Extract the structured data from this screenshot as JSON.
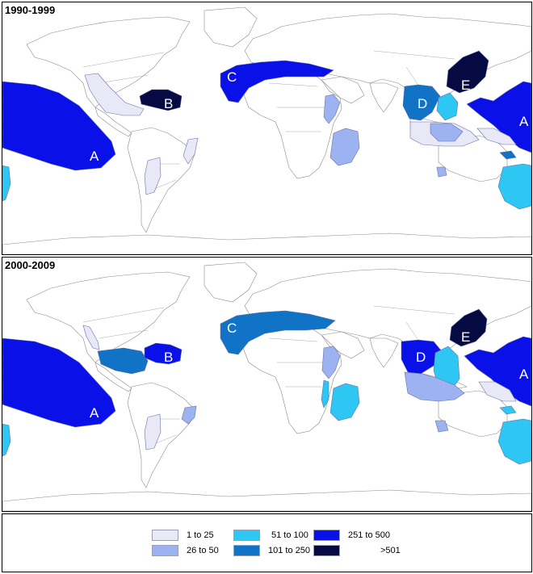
{
  "colors": {
    "c1": "#e8e8f6",
    "c2": "#9db2f0",
    "c3": "#2ec6f2",
    "c4": "#1173c6",
    "c5": "#0a10e8",
    "c6": "#050a42"
  },
  "panels": [
    {
      "period": "1990-1999",
      "regions": [
        {
          "label": "A",
          "level": "251 to 500"
        },
        {
          "label": "A",
          "level": "251 to 500"
        },
        {
          "label": "B",
          "level": ">501"
        },
        {
          "label": "C",
          "level": "251 to 500"
        },
        {
          "label": "D",
          "level": "101 to 250"
        },
        {
          "label": "E",
          "level": ">501"
        }
      ]
    },
    {
      "period": "2000-2009",
      "regions": [
        {
          "label": "A",
          "level": "251 to 500"
        },
        {
          "label": "A",
          "level": "251 to 500"
        },
        {
          "label": "B",
          "level": "251 to 500"
        },
        {
          "label": "C",
          "level": "101 to 250"
        },
        {
          "label": "D",
          "level": "251 to 500"
        },
        {
          "label": "E",
          "level": ">501"
        }
      ]
    }
  ],
  "legend": [
    {
      "label": "1 to 25",
      "color": "#e8e8f6"
    },
    {
      "label": "26 to 50",
      "color": "#9db2f0"
    },
    {
      "label": "51 to 100",
      "color": "#2ec6f2"
    },
    {
      "label": "101 to 250",
      "color": "#1173c6"
    },
    {
      "label": "251 to 500",
      "color": "#0a10e8"
    },
    {
      "label": ">501",
      "color": "#050a42"
    }
  ]
}
